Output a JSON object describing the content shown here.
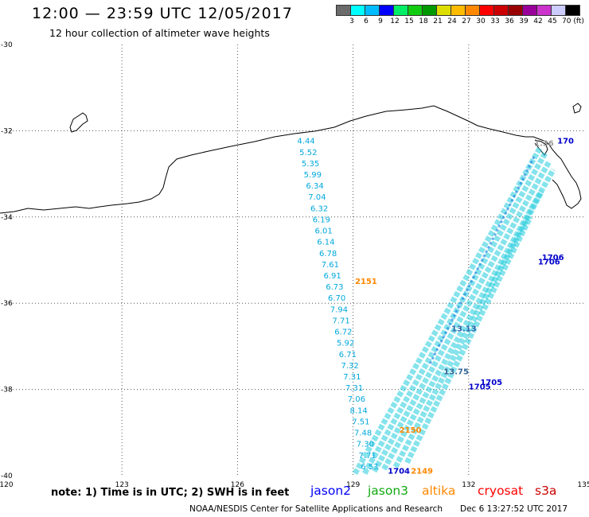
{
  "header": {
    "title": "12:00 — 23:59 UTC 12/05/2017",
    "subtitle": "12 hour collection of altimeter wave heights"
  },
  "colorbar": {
    "colors": [
      "#6b6b6b",
      "#00ffff",
      "#00bbff",
      "#0000ff",
      "#00ee66",
      "#11cc11",
      "#009900",
      "#dddd00",
      "#ffbb00",
      "#ff8800",
      "#ff0000",
      "#cc0000",
      "#990000",
      "#990099",
      "#cc33cc",
      "#ccccff",
      "#000000"
    ],
    "labels": [
      "3",
      "6",
      "9",
      "12",
      "15",
      "18",
      "21",
      "24",
      "27",
      "30",
      "33",
      "36",
      "39",
      "42",
      "45",
      "70 (ft)"
    ]
  },
  "map": {
    "lon_ticks": [
      "120",
      "123",
      "126",
      "129",
      "132",
      "135"
    ],
    "lat_ticks": [
      "-30",
      "-32",
      "-34",
      "-36",
      "-38",
      "-40"
    ],
    "swh_labels": [
      "4.44",
      "5.52",
      "5.35",
      "5.99",
      "6.34",
      "7.04",
      "6.32",
      "6.19",
      "6.01",
      "6.14",
      "6.78",
      "7.61",
      "6.91",
      "6.73",
      "6.70",
      "7.94",
      "7.71",
      "6.72",
      "5.92",
      "6.71",
      "7.32",
      "7.31",
      "7.31",
      "7.06",
      "8.14",
      "7.51",
      "7.48",
      "7.30",
      "7.71",
      "6.53"
    ],
    "ground_track_color": "#22ccdd",
    "time_labels": [
      {
        "text": "2151",
        "color": "#ff8800",
        "lon": 129.05,
        "lat": -35.55
      },
      {
        "text": "2150",
        "color": "#ff8800",
        "lon": 130.2,
        "lat": -39.0
      },
      {
        "text": "2149",
        "color": "#ff8800",
        "lon": 130.5,
        "lat": -39.95
      },
      {
        "text": "1704",
        "color": "#0000cc",
        "lon": 129.9,
        "lat": -39.95
      },
      {
        "text": "1705",
        "color": "#0000cc",
        "lon": 132.3,
        "lat": -37.9
      },
      {
        "text": "1705",
        "color": "#0000cc",
        "lon": 132.0,
        "lat": -38.0
      },
      {
        "text": "1706",
        "color": "#0000cc",
        "lon": 133.9,
        "lat": -35.0
      },
      {
        "text": "1706",
        "color": "#0000cc",
        "lon": 133.8,
        "lat": -35.1
      },
      {
        "text": "170",
        "color": "#0000cc",
        "lon": 134.3,
        "lat": -32.3
      },
      {
        "text": "1.36",
        "color": "#999999",
        "lon": 133.7,
        "lat": -32.35
      },
      {
        "text": "13.75",
        "color": "#336699",
        "lon": 131.35,
        "lat": -37.65
      },
      {
        "text": "13.13",
        "color": "#3366aa",
        "lon": 131.55,
        "lat": -36.65
      }
    ]
  },
  "footer": {
    "note": "note: 1) Time is in UTC; 2) SWH is in feet",
    "missions": [
      {
        "name": "jason2",
        "color": "#0000ff"
      },
      {
        "name": "jason3",
        "color": "#11aa11"
      },
      {
        "name": "altika",
        "color": "#ff8800"
      },
      {
        "name": "cryosat",
        "color": "#ff0000"
      },
      {
        "name": "s3a",
        "color": "#cc0000"
      }
    ],
    "credit": "NOAA/NESDIS Center for Satellite Applications and Research",
    "date": "Dec  6 13:27:52 UTC 2017"
  }
}
